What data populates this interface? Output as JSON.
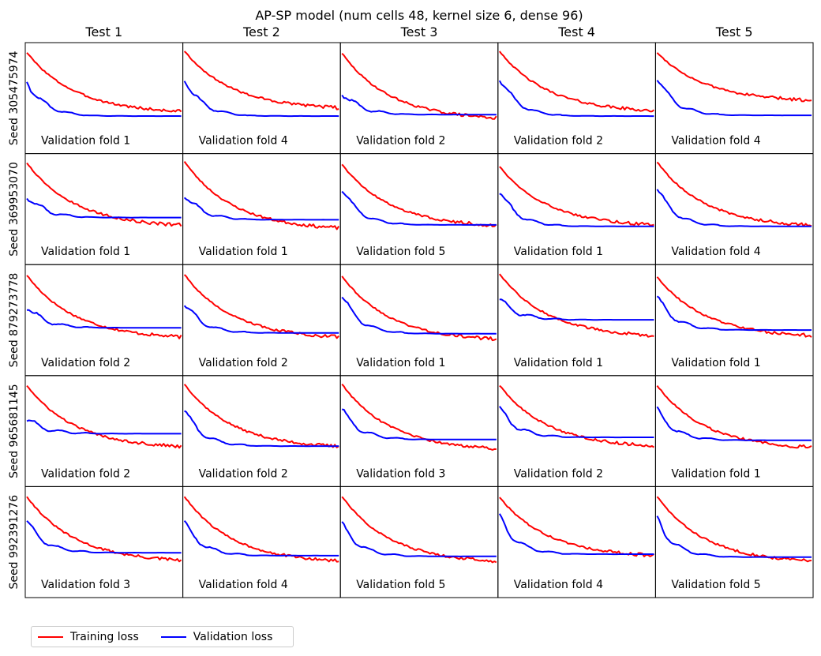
{
  "chart_data": {
    "type": "line",
    "title": "AP-SP model (num cells 48, kernel size 6, dense 96)",
    "column_titles": [
      "Test 1",
      "Test 2",
      "Test 3",
      "Test 4",
      "Test 5"
    ],
    "row_labels": [
      "Seed 305475974",
      "Seed 369953070",
      "Seed 879273778",
      "Seed 965681145",
      "Seed 992391276"
    ],
    "validation_folds": [
      [
        "Validation fold 1",
        "Validation fold 4",
        "Validation fold 2",
        "Validation fold 2",
        "Validation fold 4"
      ],
      [
        "Validation fold 1",
        "Validation fold 1",
        "Validation fold 5",
        "Validation fold 1",
        "Validation fold 4"
      ],
      [
        "Validation fold 2",
        "Validation fold 2",
        "Validation fold 1",
        "Validation fold 1",
        "Validation fold 1"
      ],
      [
        "Validation fold 2",
        "Validation fold 2",
        "Validation fold 3",
        "Validation fold 2",
        "Validation fold 1"
      ],
      [
        "Validation fold 3",
        "Validation fold 4",
        "Validation fold 5",
        "Validation fold 4",
        "Validation fold 5"
      ]
    ],
    "axes_ticks": "none",
    "y_range": [
      0,
      1
    ],
    "series_shapes": {
      "training": [
        [
          [
            0.93,
            0.33,
            0.09
          ],
          [
            0.95,
            0.37,
            0.14
          ],
          [
            0.92,
            0.12,
            0.0
          ],
          [
            0.95,
            0.35,
            0.1
          ],
          [
            0.93,
            0.47,
            0.25
          ]
        ],
        [
          [
            0.94,
            0.34,
            0.05
          ],
          [
            0.96,
            0.36,
            0.01
          ],
          [
            0.92,
            0.33,
            0.05
          ],
          [
            0.89,
            0.37,
            0.06
          ],
          [
            0.95,
            0.3,
            0.05
          ]
        ],
        [
          [
            0.92,
            0.26,
            0.04
          ],
          [
            0.93,
            0.28,
            0.04
          ],
          [
            0.91,
            0.36,
            0.01
          ],
          [
            0.94,
            0.34,
            0.06
          ],
          [
            0.9,
            0.36,
            0.06
          ]
        ],
        [
          [
            0.93,
            0.35,
            0.06
          ],
          [
            0.95,
            0.38,
            0.06
          ],
          [
            0.95,
            0.28,
            0.03
          ],
          [
            0.93,
            0.37,
            0.07
          ],
          [
            0.93,
            0.39,
            0.05
          ]
        ],
        [
          [
            0.93,
            0.36,
            0.02
          ],
          [
            0.93,
            0.38,
            0.01
          ],
          [
            0.93,
            0.36,
            0.01
          ],
          [
            0.92,
            0.26,
            0.09
          ],
          [
            0.93,
            0.38,
            0.01
          ]
        ]
      ],
      "validation": [
        [
          [
            0.55,
            0.08,
            0.06
          ],
          [
            0.58,
            0.1,
            0.06
          ],
          [
            0.4,
            0.1,
            0.08
          ],
          [
            0.6,
            0.1,
            0.06
          ],
          [
            0.6,
            0.15,
            0.07
          ]
        ],
        [
          [
            0.5,
            0.12,
            0.19
          ],
          [
            0.52,
            0.12,
            0.16
          ],
          [
            0.6,
            0.12,
            0.09
          ],
          [
            0.56,
            0.12,
            0.07
          ],
          [
            0.6,
            0.12,
            0.07
          ]
        ],
        [
          [
            0.5,
            0.12,
            0.2
          ],
          [
            0.55,
            0.12,
            0.13
          ],
          [
            0.65,
            0.16,
            0.12
          ],
          [
            0.6,
            0.3,
            0.31
          ],
          [
            0.62,
            0.15,
            0.17
          ]
        ],
        [
          [
            0.48,
            0.12,
            0.27
          ],
          [
            0.6,
            0.1,
            0.1
          ],
          [
            0.6,
            0.18,
            0.19
          ],
          [
            0.62,
            0.2,
            0.22
          ],
          [
            0.6,
            0.18,
            0.18
          ]
        ],
        [
          [
            0.6,
            0.12,
            0.16
          ],
          [
            0.58,
            0.1,
            0.12
          ],
          [
            0.55,
            0.16,
            0.11
          ],
          [
            0.65,
            0.12,
            0.14
          ],
          [
            0.62,
            0.15,
            0.1
          ]
        ]
      ]
    },
    "legend": {
      "placement": "bottom-left",
      "entries": [
        {
          "label": "Training loss",
          "color": "#ff0000"
        },
        {
          "label": "Validation loss",
          "color": "#0000ff"
        }
      ]
    },
    "colors": {
      "training": "#ff0000",
      "validation": "#0000ff"
    }
  }
}
